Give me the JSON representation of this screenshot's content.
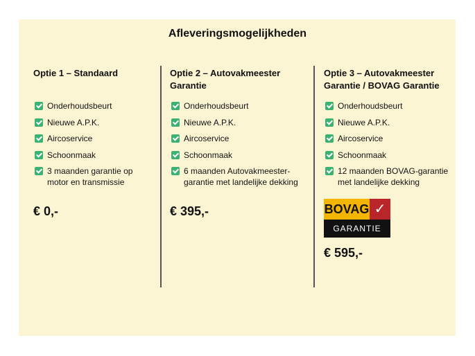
{
  "title": "Afleveringsmogelijkheden",
  "colors": {
    "background": "#fcf5d3",
    "check": "#3bb273"
  },
  "options": [
    {
      "heading": "Optie 1 – Standaard",
      "items": [
        "Onderhoudsbeurt",
        "Nieuwe A.P.K.",
        "Aircoservice",
        "Schoonmaak",
        "3 maanden garantie op motor en transmissie"
      ],
      "price": "€ 0,-"
    },
    {
      "heading": "Optie 2 – Autovakmeester Garantie",
      "items": [
        "Onderhoudsbeurt",
        "Nieuwe A.P.K.",
        "Aircoservice",
        "Schoonmaak",
        "6 maanden Autovakmeester-garantie met landelijke dekking"
      ],
      "price": "€ 395,-"
    },
    {
      "heading": "Optie 3 – Autovakmeester Garantie / BOVAG Garantie",
      "items": [
        "Onderhoudsbeurt",
        "Nieuwe A.P.K.",
        "Aircoservice",
        "Schoonmaak",
        "12 maanden BOVAG-garantie met landelijke dekking"
      ],
      "price": "€ 595,-",
      "logo": {
        "top": "BOVAG",
        "bottom": "GARANTIE"
      }
    }
  ]
}
